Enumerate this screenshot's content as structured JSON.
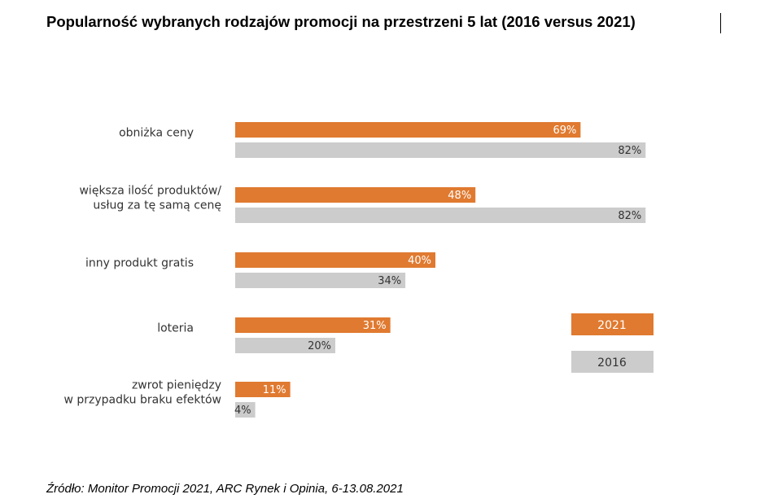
{
  "title": "Popularność wybranych rodzajów promocji na przestrzeni 5 lat (2016 versus 2021)",
  "source": "Źródło: Monitor Promocji 2021, ARC Rynek i Opinia, 6-13.08.2021",
  "colors": {
    "2021": "#E07A30",
    "2016": "#CCCCCC"
  },
  "chart_data": {
    "type": "bar",
    "orientation": "horizontal",
    "categories": [
      [
        "obniżka ceny"
      ],
      [
        "większa ilość produktów/",
        "usług za tę samą cenę"
      ],
      [
        "inny produkt gratis"
      ],
      [
        "loteria"
      ],
      [
        "zwrot pieniędzy",
        "w przypadku braku efektów"
      ]
    ],
    "series": [
      {
        "name": "2021",
        "values": [
          69,
          48,
          40,
          31,
          11
        ],
        "labels": [
          "69%",
          "48%",
          "40%",
          "31%",
          "11%"
        ]
      },
      {
        "name": "2016",
        "values": [
          82,
          82,
          34,
          20,
          4
        ],
        "labels": [
          "82%",
          "82%",
          "34%",
          "20%",
          "4%"
        ]
      }
    ],
    "legend_position": "right"
  }
}
